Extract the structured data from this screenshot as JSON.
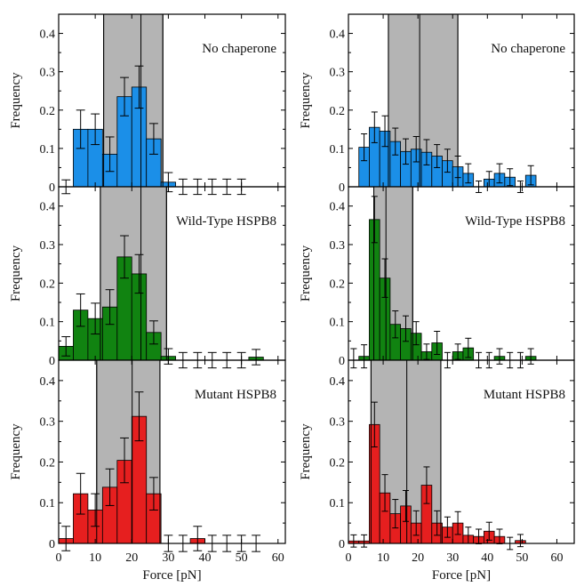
{
  "chart_data": {
    "type": "bar",
    "columns": [
      {
        "xlabel": "Force [pN]",
        "xlim": [
          0,
          62
        ],
        "xticks": [
          0,
          10,
          20,
          30,
          40,
          50,
          60
        ]
      },
      {
        "xlabel": "Force [pN]",
        "xlim": [
          0,
          65
        ],
        "xticks": [
          0,
          10,
          20,
          30,
          40,
          50,
          60
        ]
      }
    ],
    "ylabel": "Frequency",
    "ylim": [
      0,
      0.45
    ],
    "yticks": [
      0,
      0.1,
      0.2,
      0.3,
      0.4
    ],
    "ytick_labels": [
      "0",
      "0.1",
      "0.2",
      "0.3",
      "0.4"
    ],
    "error_bars": true,
    "panels": [
      {
        "label": "No chaperone",
        "color": "#1b8fe8",
        "col": 0,
        "row": 0,
        "bin_width": 4,
        "shade": [
          12.3,
          28.5
        ],
        "lines": [
          12.3,
          22.5,
          28.5
        ],
        "bars": [
          {
            "x": 2,
            "y": 0.0,
            "err": 0.018
          },
          {
            "x": 6,
            "y": 0.15,
            "err": 0.05
          },
          {
            "x": 10,
            "y": 0.15,
            "err": 0.04
          },
          {
            "x": 14,
            "y": 0.085,
            "err": 0.045
          },
          {
            "x": 18,
            "y": 0.235,
            "err": 0.05
          },
          {
            "x": 22,
            "y": 0.26,
            "err": 0.055
          },
          {
            "x": 26,
            "y": 0.125,
            "err": 0.04
          },
          {
            "x": 30,
            "y": 0.012,
            "err": 0.025
          },
          {
            "x": 34,
            "y": 0.0,
            "err": 0.02
          },
          {
            "x": 38,
            "y": 0.0,
            "err": 0.02
          },
          {
            "x": 42,
            "y": 0.0,
            "err": 0.02
          },
          {
            "x": 46,
            "y": 0.0,
            "err": 0.02
          },
          {
            "x": 50,
            "y": 0.0,
            "err": 0.02
          }
        ]
      },
      {
        "label": "Wild-Type HSPB8",
        "color": "#118311",
        "col": 0,
        "row": 1,
        "bin_width": 4,
        "shade": [
          11.4,
          29.5
        ],
        "lines": [
          11.4,
          22.5,
          29.5
        ],
        "bars": [
          {
            "x": 2,
            "y": 0.036,
            "err": 0.025
          },
          {
            "x": 6,
            "y": 0.13,
            "err": 0.042
          },
          {
            "x": 10,
            "y": 0.108,
            "err": 0.04
          },
          {
            "x": 14,
            "y": 0.138,
            "err": 0.045
          },
          {
            "x": 18,
            "y": 0.268,
            "err": 0.055
          },
          {
            "x": 22,
            "y": 0.224,
            "err": 0.05
          },
          {
            "x": 26,
            "y": 0.072,
            "err": 0.03
          },
          {
            "x": 30,
            "y": 0.01,
            "err": 0.02
          },
          {
            "x": 34,
            "y": 0.0,
            "err": 0.02
          },
          {
            "x": 38,
            "y": 0.0,
            "err": 0.02
          },
          {
            "x": 42,
            "y": 0.0,
            "err": 0.02
          },
          {
            "x": 46,
            "y": 0.0,
            "err": 0.02
          },
          {
            "x": 50,
            "y": 0.0,
            "err": 0.02
          },
          {
            "x": 54,
            "y": 0.008,
            "err": 0.02
          }
        ]
      },
      {
        "label": "Mutant HSPB8",
        "color": "#e61f1f",
        "col": 0,
        "row": 2,
        "bin_width": 4,
        "shade": [
          10.4,
          27.7
        ],
        "lines": [
          10.4,
          20.1,
          27.7
        ],
        "bars": [
          {
            "x": 2,
            "y": 0.012,
            "err": 0.03
          },
          {
            "x": 6,
            "y": 0.122,
            "err": 0.05
          },
          {
            "x": 10,
            "y": 0.082,
            "err": 0.04
          },
          {
            "x": 14,
            "y": 0.138,
            "err": 0.045
          },
          {
            "x": 18,
            "y": 0.204,
            "err": 0.055
          },
          {
            "x": 22,
            "y": 0.312,
            "err": 0.06
          },
          {
            "x": 26,
            "y": 0.122,
            "err": 0.04
          },
          {
            "x": 30,
            "y": 0.0,
            "err": 0.02
          },
          {
            "x": 34,
            "y": 0.0,
            "err": 0.02
          },
          {
            "x": 38,
            "y": 0.012,
            "err": 0.03
          },
          {
            "x": 42,
            "y": 0.0,
            "err": 0.02
          },
          {
            "x": 46,
            "y": 0.0,
            "err": 0.02
          },
          {
            "x": 50,
            "y": 0.0,
            "err": 0.02
          },
          {
            "x": 54,
            "y": 0.0,
            "err": 0.02
          }
        ]
      },
      {
        "label": "No chaperone",
        "color": "#1b8fe8",
        "col": 1,
        "row": 0,
        "bin_width": 3,
        "shade": [
          11.5,
          31.5
        ],
        "lines": [
          11.5,
          20.5,
          31.5
        ],
        "bars": [
          {
            "x": 4.5,
            "y": 0.103,
            "err": 0.035
          },
          {
            "x": 7.5,
            "y": 0.155,
            "err": 0.04
          },
          {
            "x": 10.5,
            "y": 0.145,
            "err": 0.04
          },
          {
            "x": 13.5,
            "y": 0.118,
            "err": 0.035
          },
          {
            "x": 16.5,
            "y": 0.092,
            "err": 0.033
          },
          {
            "x": 19.5,
            "y": 0.098,
            "err": 0.033
          },
          {
            "x": 22.5,
            "y": 0.09,
            "err": 0.033
          },
          {
            "x": 25.5,
            "y": 0.08,
            "err": 0.03
          },
          {
            "x": 28.5,
            "y": 0.068,
            "err": 0.03
          },
          {
            "x": 31.5,
            "y": 0.052,
            "err": 0.028
          },
          {
            "x": 34.5,
            "y": 0.035,
            "err": 0.025
          },
          {
            "x": 37.5,
            "y": 0.0,
            "err": 0.015
          },
          {
            "x": 40.5,
            "y": 0.02,
            "err": 0.02
          },
          {
            "x": 43.5,
            "y": 0.035,
            "err": 0.025
          },
          {
            "x": 46.5,
            "y": 0.025,
            "err": 0.022
          },
          {
            "x": 49.5,
            "y": 0.0,
            "err": 0.015
          },
          {
            "x": 52.5,
            "y": 0.03,
            "err": 0.025
          }
        ]
      },
      {
        "label": "Wild-Type HSPB8",
        "color": "#118311",
        "col": 1,
        "row": 1,
        "bin_width": 3,
        "shade": [
          7.3,
          18.5
        ],
        "lines": [
          7.3,
          10.8,
          18.5
        ],
        "bars": [
          {
            "x": 1.5,
            "y": 0.0,
            "err": 0.03
          },
          {
            "x": 4.5,
            "y": 0.01,
            "err": 0.03
          },
          {
            "x": 7.5,
            "y": 0.365,
            "err": 0.06
          },
          {
            "x": 10.5,
            "y": 0.213,
            "err": 0.05
          },
          {
            "x": 13.5,
            "y": 0.093,
            "err": 0.035
          },
          {
            "x": 16.5,
            "y": 0.082,
            "err": 0.033
          },
          {
            "x": 19.5,
            "y": 0.07,
            "err": 0.03
          },
          {
            "x": 22.5,
            "y": 0.022,
            "err": 0.02
          },
          {
            "x": 25.5,
            "y": 0.045,
            "err": 0.03
          },
          {
            "x": 28.5,
            "y": 0.0,
            "err": 0.02
          },
          {
            "x": 31.5,
            "y": 0.022,
            "err": 0.02
          },
          {
            "x": 34.5,
            "y": 0.032,
            "err": 0.025
          },
          {
            "x": 37.5,
            "y": 0.0,
            "err": 0.02
          },
          {
            "x": 40.5,
            "y": 0.0,
            "err": 0.02
          },
          {
            "x": 43.5,
            "y": 0.01,
            "err": 0.02
          },
          {
            "x": 46.5,
            "y": 0.0,
            "err": 0.02
          },
          {
            "x": 49.5,
            "y": 0.0,
            "err": 0.02
          },
          {
            "x": 52.5,
            "y": 0.01,
            "err": 0.02
          }
        ]
      },
      {
        "label": "Mutant HSPB8",
        "color": "#e61f1f",
        "col": 1,
        "row": 2,
        "bin_width": 3,
        "shade": [
          6.5,
          26.6
        ],
        "lines": [
          6.5,
          16.8,
          26.6
        ],
        "bars": [
          {
            "x": 1.5,
            "y": 0.006,
            "err": 0.015
          },
          {
            "x": 4.5,
            "y": 0.006,
            "err": 0.015
          },
          {
            "x": 7.5,
            "y": 0.292,
            "err": 0.055
          },
          {
            "x": 10.5,
            "y": 0.124,
            "err": 0.045
          },
          {
            "x": 13.5,
            "y": 0.073,
            "err": 0.035
          },
          {
            "x": 16.5,
            "y": 0.092,
            "err": 0.038
          },
          {
            "x": 19.5,
            "y": 0.05,
            "err": 0.03
          },
          {
            "x": 22.5,
            "y": 0.143,
            "err": 0.045
          },
          {
            "x": 25.5,
            "y": 0.05,
            "err": 0.03
          },
          {
            "x": 28.5,
            "y": 0.04,
            "err": 0.025
          },
          {
            "x": 31.5,
            "y": 0.05,
            "err": 0.028
          },
          {
            "x": 34.5,
            "y": 0.02,
            "err": 0.02
          },
          {
            "x": 37.5,
            "y": 0.017,
            "err": 0.018
          },
          {
            "x": 40.5,
            "y": 0.03,
            "err": 0.022
          },
          {
            "x": 43.5,
            "y": 0.017,
            "err": 0.018
          },
          {
            "x": 46.5,
            "y": 0.0,
            "err": 0.015
          },
          {
            "x": 49.5,
            "y": 0.007,
            "err": 0.015
          }
        ]
      }
    ]
  }
}
